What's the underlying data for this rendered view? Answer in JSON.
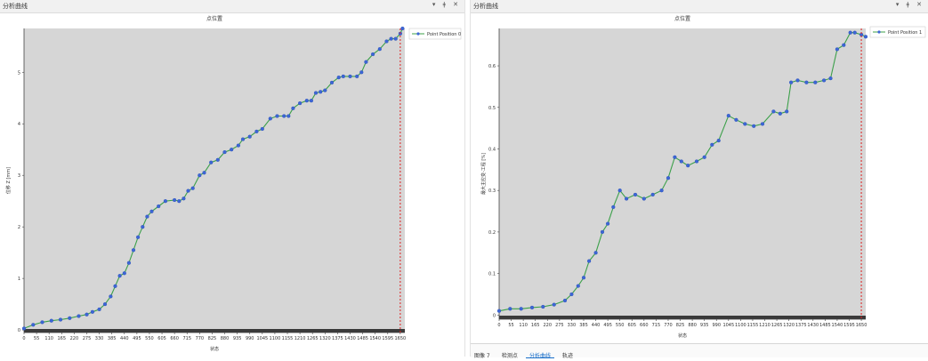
{
  "left_panel": {
    "title": "分析曲线",
    "pin_icon": "▾",
    "float_icon": "ǂ",
    "close_icon": "✕"
  },
  "right_panel": {
    "title": "分析曲线",
    "pin_icon": "▾",
    "float_icon": "ǂ",
    "close_icon": "✕"
  },
  "bottom_tabs": [
    {
      "label": "图像 7"
    },
    {
      "label": "检测点"
    },
    {
      "label": "分析曲线"
    },
    {
      "label": "轨迹"
    }
  ],
  "chart_data": [
    {
      "type": "scatter",
      "title": "点位置",
      "xlabel": "状态",
      "ylabel": "位移 Z [mm]",
      "xlim": [
        0,
        1670
      ],
      "ylim": [
        -0.05,
        5.85
      ],
      "xticks": [
        0,
        55,
        110,
        165,
        220,
        275,
        330,
        385,
        440,
        495,
        550,
        605,
        660,
        715,
        770,
        825,
        880,
        935,
        990,
        1045,
        1100,
        1155,
        1210,
        1265,
        1320,
        1375,
        1430,
        1485,
        1540,
        1595,
        1650
      ],
      "yticks": [
        0,
        1,
        2,
        3,
        4,
        5
      ],
      "marker_line_x": 1650,
      "series": [
        {
          "name": "Point Position 0",
          "x": [
            0,
            40,
            80,
            120,
            160,
            200,
            240,
            275,
            300,
            330,
            355,
            380,
            400,
            420,
            440,
            460,
            480,
            500,
            520,
            540,
            560,
            590,
            620,
            660,
            680,
            700,
            720,
            740,
            770,
            790,
            820,
            850,
            880,
            910,
            940,
            960,
            990,
            1020,
            1045,
            1080,
            1110,
            1140,
            1160,
            1180,
            1210,
            1240,
            1260,
            1280,
            1300,
            1320,
            1350,
            1380,
            1400,
            1430,
            1460,
            1480,
            1500,
            1530,
            1560,
            1590,
            1610,
            1630,
            1650,
            1660
          ],
          "y": [
            0.03,
            0.1,
            0.15,
            0.18,
            0.2,
            0.23,
            0.27,
            0.3,
            0.35,
            0.4,
            0.5,
            0.65,
            0.85,
            1.05,
            1.1,
            1.3,
            1.55,
            1.8,
            2.0,
            2.2,
            2.3,
            2.4,
            2.5,
            2.52,
            2.5,
            2.55,
            2.7,
            2.75,
            3.0,
            3.05,
            3.25,
            3.3,
            3.45,
            3.5,
            3.58,
            3.7,
            3.75,
            3.85,
            3.9,
            4.1,
            4.15,
            4.15,
            4.15,
            4.3,
            4.4,
            4.45,
            4.45,
            4.6,
            4.62,
            4.65,
            4.8,
            4.9,
            4.92,
            4.92,
            4.92,
            5.0,
            5.2,
            5.35,
            5.45,
            5.6,
            5.65,
            5.65,
            5.75,
            5.85
          ]
        }
      ]
    },
    {
      "type": "scatter",
      "title": "点位置",
      "xlabel": "状态",
      "ylabel": "最大主应变-工程 [%]",
      "xlim": [
        0,
        1670
      ],
      "ylim": [
        -0.01,
        0.69
      ],
      "xticks": [
        0,
        55,
        110,
        165,
        220,
        275,
        330,
        385,
        440,
        495,
        550,
        605,
        660,
        715,
        770,
        825,
        880,
        935,
        990,
        1045,
        1100,
        1155,
        1210,
        1265,
        1320,
        1375,
        1430,
        1485,
        1540,
        1595,
        1650
      ],
      "yticks": [
        0,
        0.1,
        0.2,
        0.3,
        0.4,
        0.5,
        0.6
      ],
      "marker_line_x": 1650,
      "series": [
        {
          "name": "Point Position 1",
          "x": [
            0,
            50,
            100,
            150,
            200,
            250,
            300,
            330,
            360,
            385,
            410,
            440,
            470,
            495,
            520,
            550,
            580,
            620,
            660,
            700,
            740,
            770,
            800,
            830,
            860,
            900,
            935,
            970,
            1000,
            1045,
            1080,
            1120,
            1160,
            1200,
            1250,
            1280,
            1310,
            1330,
            1360,
            1400,
            1440,
            1480,
            1510,
            1540,
            1570,
            1600,
            1620,
            1650,
            1670
          ],
          "y": [
            0.01,
            0.015,
            0.015,
            0.018,
            0.02,
            0.025,
            0.035,
            0.05,
            0.07,
            0.09,
            0.13,
            0.15,
            0.2,
            0.22,
            0.26,
            0.3,
            0.28,
            0.29,
            0.28,
            0.29,
            0.3,
            0.33,
            0.38,
            0.37,
            0.36,
            0.37,
            0.38,
            0.41,
            0.42,
            0.48,
            0.47,
            0.46,
            0.455,
            0.46,
            0.49,
            0.485,
            0.49,
            0.56,
            0.565,
            0.56,
            0.56,
            0.565,
            0.57,
            0.64,
            0.65,
            0.68,
            0.68,
            0.675,
            0.67
          ]
        }
      ]
    }
  ]
}
